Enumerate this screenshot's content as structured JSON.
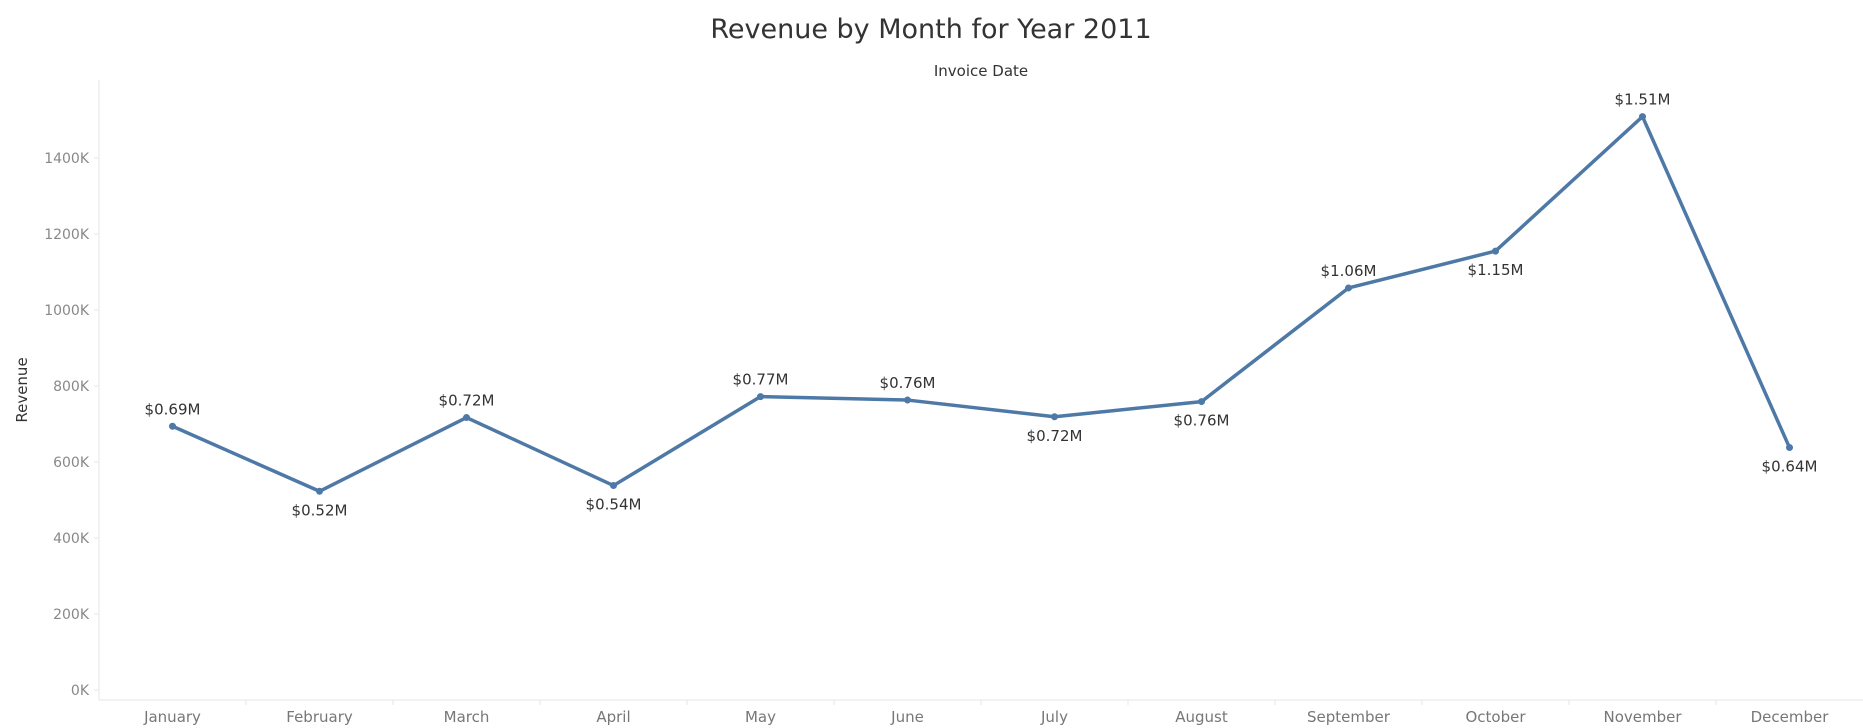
{
  "chart_data": {
    "type": "line",
    "title": "Revenue by Month for Year 2011",
    "xlabel": "Invoice Date",
    "ylabel": "Revenue",
    "categories": [
      "January",
      "February",
      "March",
      "April",
      "May",
      "June",
      "July",
      "August",
      "September",
      "October",
      "November",
      "December"
    ],
    "values": [
      694,
      523,
      717,
      538,
      772,
      763,
      719,
      759,
      1058,
      1155,
      1509,
      638
    ],
    "value_units": "K",
    "data_labels": [
      "$0.69M",
      "$0.52M",
      "$0.72M",
      "$0.54M",
      "$0.77M",
      "$0.76M",
      "$0.72M",
      "$0.76M",
      "$1.06M",
      "$1.15M",
      "$1.51M",
      "$0.64M"
    ],
    "label_positions": [
      "above",
      "below",
      "above",
      "below",
      "above",
      "above",
      "below",
      "below",
      "above",
      "below",
      "above",
      "below"
    ],
    "yticks": [
      0,
      200,
      400,
      600,
      800,
      1000,
      1200,
      1400
    ],
    "ytick_labels": [
      "0K",
      "200K",
      "400K",
      "600K",
      "800K",
      "1000K",
      "1200K",
      "1400K"
    ],
    "ylim": [
      0,
      1600
    ],
    "grid": false,
    "line_color": "#4e79a7",
    "axis_color": "#e6e6e6"
  }
}
